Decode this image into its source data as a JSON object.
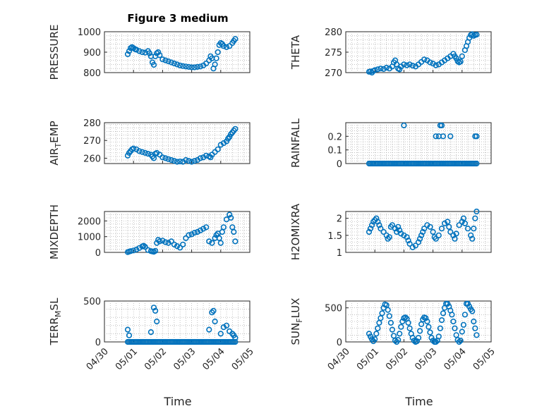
{
  "chart_data": {
    "type": "scatter",
    "title": "Figure 3 medium",
    "xlabel": "Time",
    "x_ticks": [
      "04/30",
      "05/01",
      "05/02",
      "05/03",
      "05/04",
      "05/05"
    ],
    "marker_color": "#0072BD",
    "panels": [
      {
        "name": "pressure",
        "ylabel": "PRESSURE",
        "ylim": [
          800,
          1000
        ],
        "yticks": [
          800,
          900,
          1000
        ],
        "x": [
          0.8,
          0.85,
          0.9,
          0.95,
          1.0,
          1.05,
          1.1,
          1.2,
          1.3,
          1.4,
          1.5,
          1.55,
          1.6,
          1.65,
          1.7,
          1.75,
          1.8,
          1.85,
          1.9,
          2.0,
          2.1,
          2.2,
          2.3,
          2.4,
          2.5,
          2.6,
          2.7,
          2.8,
          2.9,
          3.0,
          3.1,
          3.2,
          3.3,
          3.4,
          3.5,
          3.6,
          3.65,
          3.7,
          3.75,
          3.8,
          3.85,
          3.9,
          3.95,
          4.0,
          4.05,
          4.1,
          4.2,
          4.3,
          4.4,
          4.45,
          4.5
        ],
        "y": [
          890,
          905,
          920,
          925,
          920,
          915,
          912,
          905,
          900,
          898,
          905,
          895,
          880,
          850,
          838,
          880,
          895,
          900,
          885,
          865,
          860,
          855,
          850,
          845,
          840,
          835,
          832,
          830,
          828,
          826,
          826,
          828,
          830,
          835,
          845,
          860,
          880,
          870,
          820,
          840,
          870,
          900,
          935,
          945,
          940,
          930,
          925,
          930,
          945,
          955,
          965
        ]
      },
      {
        "name": "theta",
        "ylabel": "THETA",
        "ylim": [
          270,
          280
        ],
        "yticks": [
          270,
          275,
          280
        ],
        "x": [
          0.8,
          0.85,
          0.9,
          0.95,
          1.0,
          1.1,
          1.2,
          1.3,
          1.4,
          1.5,
          1.6,
          1.65,
          1.7,
          1.75,
          1.8,
          1.85,
          1.9,
          2.0,
          2.1,
          2.2,
          2.3,
          2.4,
          2.5,
          2.6,
          2.7,
          2.8,
          2.9,
          3.0,
          3.1,
          3.2,
          3.3,
          3.4,
          3.5,
          3.6,
          3.7,
          3.75,
          3.8,
          3.85,
          3.9,
          3.95,
          4.0,
          4.1,
          4.15,
          4.2,
          4.25,
          4.3,
          4.35,
          4.4,
          4.45,
          4.5
        ],
        "y": [
          270.2,
          270.3,
          270.0,
          270.4,
          270.6,
          270.8,
          271.0,
          270.9,
          271.2,
          271.0,
          271.5,
          272.5,
          273.0,
          272.0,
          271.0,
          270.8,
          271.5,
          272.0,
          271.8,
          272.0,
          271.7,
          271.5,
          272.0,
          272.6,
          273.2,
          273.0,
          272.5,
          272.2,
          271.8,
          272.0,
          272.5,
          273.0,
          273.5,
          274.0,
          274.6,
          274.0,
          273.5,
          272.8,
          272.5,
          272.7,
          274.0,
          275.5,
          276.5,
          277.5,
          278.5,
          279.2,
          279.4,
          279.0,
          279.2,
          279.3
        ]
      },
      {
        "name": "air-temp",
        "ylabel": "AIR_TEMP",
        "ylim": [
          257,
          280
        ],
        "yticks": [
          260,
          270,
          280
        ],
        "x": [
          0.8,
          0.85,
          0.9,
          0.95,
          1.0,
          1.1,
          1.2,
          1.3,
          1.4,
          1.5,
          1.6,
          1.65,
          1.7,
          1.75,
          1.8,
          1.9,
          2.0,
          2.1,
          2.2,
          2.3,
          2.4,
          2.5,
          2.6,
          2.7,
          2.8,
          2.9,
          3.0,
          3.1,
          3.2,
          3.3,
          3.4,
          3.5,
          3.6,
          3.65,
          3.7,
          3.8,
          3.9,
          4.0,
          4.1,
          4.2,
          4.25,
          4.3,
          4.35,
          4.4,
          4.45,
          4.5
        ],
        "y": [
          261.5,
          263.0,
          264.0,
          265.0,
          265.5,
          265.0,
          264.0,
          263.5,
          263.0,
          262.5,
          262.0,
          261.0,
          260.0,
          262.5,
          263.0,
          262.0,
          260.5,
          260.0,
          259.5,
          259.0,
          258.5,
          258.0,
          258.2,
          258.0,
          259.0,
          258.5,
          258.0,
          258.5,
          259.0,
          260.0,
          260.5,
          261.5,
          261.0,
          260.5,
          262.0,
          263.5,
          265.0,
          267.5,
          268.5,
          269.5,
          271.0,
          272.0,
          273.5,
          274.5,
          275.5,
          276.5
        ]
      },
      {
        "name": "rainfall",
        "ylabel": "RAINFALL",
        "ylim": [
          0,
          0.3
        ],
        "yticks": [
          0,
          0.1,
          0.2
        ],
        "x": [
          0.8,
          0.85,
          0.9,
          0.95,
          1.0,
          1.05,
          1.1,
          1.15,
          1.2,
          1.25,
          1.3,
          1.35,
          1.4,
          1.45,
          1.5,
          1.55,
          1.6,
          1.65,
          1.7,
          1.75,
          1.8,
          1.85,
          1.9,
          1.95,
          2.0,
          2.05,
          2.1,
          2.15,
          2.2,
          2.25,
          2.3,
          2.35,
          2.4,
          2.45,
          2.5,
          2.55,
          2.6,
          2.65,
          2.7,
          2.75,
          2.8,
          2.85,
          2.9,
          2.95,
          3.0,
          3.05,
          3.1,
          3.15,
          3.2,
          3.25,
          3.3,
          3.35,
          3.4,
          3.45,
          3.5,
          3.55,
          3.6,
          3.65,
          3.7,
          3.75,
          3.8,
          3.85,
          3.9,
          3.95,
          4.0,
          4.05,
          4.1,
          4.15,
          4.2,
          4.25,
          4.3,
          4.35,
          4.4,
          4.45,
          4.5,
          2.0,
          3.1,
          3.2,
          3.25,
          3.3,
          3.35,
          3.6,
          4.45,
          4.5
        ],
        "y": [
          0,
          0,
          0,
          0,
          0,
          0,
          0,
          0,
          0,
          0,
          0,
          0,
          0,
          0,
          0,
          0,
          0,
          0,
          0,
          0,
          0,
          0,
          0,
          0,
          0,
          0,
          0,
          0,
          0,
          0,
          0,
          0,
          0,
          0,
          0,
          0,
          0,
          0,
          0,
          0,
          0,
          0,
          0,
          0,
          0,
          0,
          0,
          0,
          0,
          0,
          0,
          0,
          0,
          0,
          0,
          0,
          0,
          0,
          0,
          0,
          0,
          0,
          0,
          0,
          0,
          0,
          0,
          0,
          0,
          0,
          0,
          0,
          0,
          0,
          0,
          0.28,
          0.2,
          0.2,
          0.28,
          0.28,
          0.2,
          0.2,
          0.2,
          0.2
        ]
      },
      {
        "name": "mixdepth",
        "ylabel": "MIXDEPTH",
        "ylim": [
          0,
          2600
        ],
        "yticks": [
          0,
          1000,
          2000
        ],
        "x": [
          0.8,
          0.85,
          0.9,
          1.0,
          1.1,
          1.2,
          1.3,
          1.35,
          1.4,
          1.5,
          1.6,
          1.65,
          1.7,
          1.75,
          1.8,
          1.85,
          1.9,
          2.0,
          2.1,
          2.2,
          2.3,
          2.4,
          2.5,
          2.6,
          2.7,
          2.8,
          2.9,
          3.0,
          3.1,
          3.2,
          3.3,
          3.4,
          3.5,
          3.6,
          3.7,
          3.8,
          3.85,
          3.9,
          3.95,
          4.0,
          4.05,
          4.1,
          4.2,
          4.3,
          4.35,
          4.4,
          4.45,
          4.5
        ],
        "y": [
          20,
          50,
          80,
          120,
          180,
          280,
          380,
          420,
          350,
          150,
          80,
          60,
          40,
          100,
          600,
          800,
          700,
          750,
          650,
          600,
          700,
          500,
          400,
          300,
          500,
          900,
          1100,
          1150,
          1250,
          1300,
          1400,
          1500,
          1600,
          700,
          600,
          900,
          1100,
          1200,
          900,
          600,
          1300,
          1600,
          2100,
          2400,
          2200,
          1600,
          1300,
          700
        ]
      },
      {
        "name": "h2omixra",
        "ylabel": "H2OMIXRA",
        "ylim": [
          1,
          2.2
        ],
        "yticks": [
          1,
          1.5,
          2
        ],
        "x": [
          0.8,
          0.85,
          0.9,
          0.95,
          1.0,
          1.05,
          1.1,
          1.15,
          1.2,
          1.3,
          1.4,
          1.45,
          1.5,
          1.55,
          1.6,
          1.7,
          1.75,
          1.8,
          1.85,
          1.9,
          2.0,
          2.1,
          2.15,
          2.2,
          2.3,
          2.4,
          2.5,
          2.55,
          2.6,
          2.65,
          2.7,
          2.8,
          2.9,
          3.0,
          3.05,
          3.1,
          3.2,
          3.3,
          3.4,
          3.5,
          3.55,
          3.6,
          3.7,
          3.75,
          3.8,
          3.9,
          4.0,
          4.05,
          4.1,
          4.2,
          4.3,
          4.35,
          4.4,
          4.45,
          4.5
        ],
        "y": [
          1.6,
          1.7,
          1.8,
          1.9,
          1.95,
          2.0,
          1.9,
          1.8,
          1.7,
          1.6,
          1.5,
          1.4,
          1.45,
          1.75,
          1.8,
          1.7,
          1.6,
          1.75,
          1.65,
          1.55,
          1.5,
          1.45,
          1.35,
          1.25,
          1.15,
          1.2,
          1.3,
          1.4,
          1.5,
          1.6,
          1.7,
          1.8,
          1.75,
          1.6,
          1.45,
          1.4,
          1.5,
          1.7,
          1.85,
          1.9,
          1.75,
          1.6,
          1.5,
          1.4,
          1.55,
          1.8,
          1.9,
          2.0,
          1.85,
          1.7,
          1.5,
          1.4,
          1.7,
          2.0,
          2.2
        ]
      },
      {
        "name": "terr-msl",
        "ylabel": "TERR_MSL",
        "ylim": [
          0,
          500
        ],
        "yticks": [
          0,
          500
        ],
        "x": [
          0.8,
          0.85,
          0.9,
          0.95,
          1.0,
          1.05,
          1.1,
          1.15,
          1.2,
          1.25,
          1.3,
          1.35,
          1.4,
          1.45,
          1.5,
          1.55,
          1.6,
          1.65,
          1.7,
          1.75,
          1.8,
          1.85,
          1.9,
          1.95,
          2.0,
          2.05,
          2.1,
          2.15,
          2.2,
          2.25,
          2.3,
          2.35,
          2.4,
          2.45,
          2.5,
          2.55,
          2.6,
          2.65,
          2.7,
          2.75,
          2.8,
          2.85,
          2.9,
          2.95,
          3.0,
          3.05,
          3.1,
          3.15,
          3.2,
          3.25,
          3.3,
          3.35,
          3.4,
          3.45,
          3.5,
          3.55,
          3.6,
          3.65,
          3.7,
          3.75,
          3.8,
          3.85,
          3.9,
          3.95,
          4.0,
          4.05,
          4.1,
          4.15,
          4.2,
          4.25,
          4.3,
          4.35,
          4.4,
          4.45,
          4.5,
          0.8,
          0.85,
          1.6,
          1.7,
          1.75,
          1.8,
          3.6,
          3.7,
          3.75,
          3.8,
          4.0,
          4.1,
          4.2,
          4.3,
          4.4,
          4.45,
          4.5
        ],
        "y": [
          0,
          0,
          0,
          0,
          0,
          0,
          0,
          0,
          0,
          0,
          0,
          0,
          0,
          0,
          0,
          0,
          0,
          0,
          0,
          0,
          0,
          0,
          0,
          0,
          0,
          0,
          0,
          0,
          0,
          0,
          0,
          0,
          0,
          0,
          0,
          0,
          0,
          0,
          0,
          0,
          0,
          0,
          0,
          0,
          0,
          0,
          0,
          0,
          0,
          0,
          0,
          0,
          0,
          0,
          0,
          0,
          0,
          0,
          0,
          0,
          0,
          0,
          0,
          0,
          0,
          0,
          0,
          0,
          0,
          0,
          0,
          0,
          0,
          0,
          0,
          150,
          80,
          120,
          420,
          380,
          250,
          150,
          360,
          380,
          250,
          100,
          180,
          200,
          130,
          100,
          80,
          50
        ]
      },
      {
        "name": "sun-flux",
        "ylabel": "SUN_FLUX",
        "ylim": [
          0,
          600
        ],
        "yticks": [
          0,
          500
        ],
        "x": [
          0.8,
          0.85,
          0.9,
          0.95,
          1.0,
          1.05,
          1.1,
          1.15,
          1.2,
          1.25,
          1.3,
          1.35,
          1.4,
          1.45,
          1.5,
          1.55,
          1.6,
          1.65,
          1.7,
          1.75,
          1.8,
          1.85,
          1.9,
          1.95,
          2.0,
          2.05,
          2.1,
          2.15,
          2.2,
          2.25,
          2.3,
          2.35,
          2.4,
          2.45,
          2.5,
          2.55,
          2.6,
          2.65,
          2.7,
          2.75,
          2.8,
          2.85,
          2.9,
          2.95,
          3.0,
          3.05,
          3.1,
          3.15,
          3.2,
          3.25,
          3.3,
          3.35,
          3.4,
          3.45,
          3.5,
          3.55,
          3.6,
          3.65,
          3.7,
          3.75,
          3.8,
          3.85,
          3.9,
          3.95,
          4.0,
          4.05,
          4.1,
          4.15,
          4.2,
          4.25,
          4.3,
          4.35,
          4.4,
          4.45,
          4.5
        ],
        "y": [
          120,
          80,
          40,
          10,
          40,
          120,
          200,
          280,
          350,
          420,
          500,
          550,
          540,
          470,
          380,
          280,
          180,
          90,
          20,
          0,
          30,
          120,
          220,
          300,
          350,
          360,
          340,
          280,
          200,
          120,
          60,
          20,
          0,
          10,
          60,
          160,
          260,
          330,
          360,
          350,
          300,
          220,
          140,
          60,
          20,
          0,
          0,
          20,
          80,
          200,
          320,
          420,
          500,
          560,
          560,
          520,
          460,
          400,
          300,
          200,
          100,
          30,
          0,
          20,
          150,
          250,
          400,
          560,
          560,
          520,
          480,
          450,
          300,
          200,
          100
        ]
      }
    ]
  }
}
